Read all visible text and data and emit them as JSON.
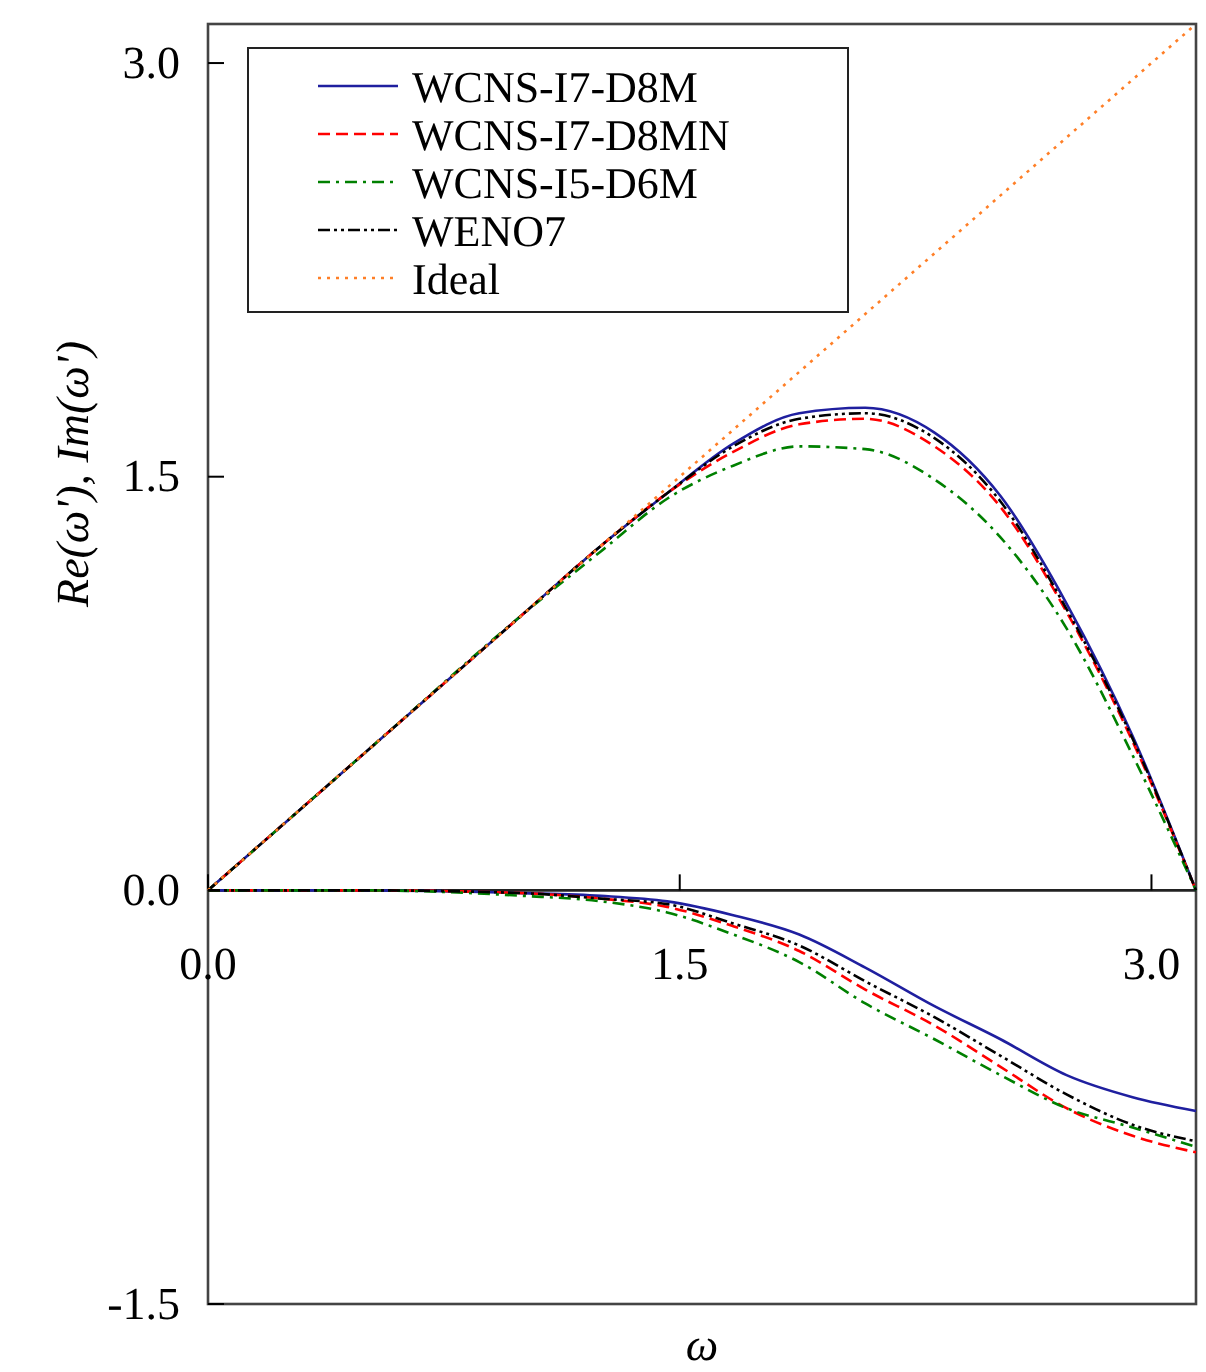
{
  "chart_data": {
    "type": "line",
    "xlabel": "ω",
    "ylabel": "Re(ω'), Im(ω')",
    "x": [
      0,
      0.5,
      1.0,
      1.25,
      1.46,
      1.67,
      1.88,
      2.09,
      2.31,
      2.52,
      2.73,
      2.94,
      3.1416
    ],
    "xlim": [
      0,
      3.1416
    ],
    "ylim": [
      -1.5,
      3.1416
    ],
    "xticks": [
      {
        "value": 0,
        "label": "0.0"
      },
      1.5,
      {
        "value": 3,
        "label": "3.0"
      }
    ],
    "yticks": [
      {
        "value": -1.5,
        "label": "-1.5"
      },
      {
        "value": 0,
        "label": "0.0"
      },
      1.5,
      {
        "value": 3,
        "label": "3.0"
      }
    ],
    "legend": "top left",
    "grid": false,
    "series": [
      {
        "name": "WCNS-I7-D8M",
        "color": "#1f1f9f",
        "line_style": "solid",
        "values": [
          0,
          0.5,
          1.0,
          1.25,
          1.44,
          1.62,
          1.73,
          1.75,
          1.66,
          1.43,
          1.04,
          0.56,
          0
        ]
      },
      {
        "name": "WCNS-I7-D8MN",
        "color": "#ff0000",
        "line_style": "dashed",
        "values": [
          0,
          0.5,
          1.0,
          1.25,
          1.44,
          1.59,
          1.69,
          1.71,
          1.61,
          1.39,
          1.01,
          0.54,
          0
        ]
      },
      {
        "name": "WCNS-I5-D6M",
        "color": "#008000",
        "line_style": "dashdot",
        "values": [
          0,
          0.5,
          1.0,
          1.23,
          1.42,
          1.54,
          1.61,
          1.6,
          1.49,
          1.28,
          0.95,
          0.49,
          0
        ]
      },
      {
        "name": "WENO7",
        "color": "#000000",
        "line_style": "dashdotdot",
        "values": [
          0,
          0.5,
          1.0,
          1.25,
          1.44,
          1.61,
          1.71,
          1.73,
          1.64,
          1.41,
          1.02,
          0.55,
          0
        ]
      },
      {
        "name": "Ideal",
        "color": "#ff7f27",
        "line_style": "dotted",
        "x": [
          0,
          3.1416
        ],
        "values": [
          0,
          3.1416
        ]
      },
      {
        "color": "#1f1f9f",
        "line_style": "solid",
        "values": [
          0,
          0,
          -0.01,
          -0.02,
          -0.04,
          -0.09,
          -0.16,
          -0.28,
          -0.42,
          -0.54,
          -0.67,
          -0.75,
          -0.8
        ]
      },
      {
        "color": "#ff0000",
        "line_style": "dashed",
        "values": [
          0,
          0,
          -0.01,
          -0.03,
          -0.06,
          -0.13,
          -0.22,
          -0.36,
          -0.49,
          -0.64,
          -0.79,
          -0.89,
          -0.95
        ]
      },
      {
        "color": "#008000",
        "line_style": "dashdot",
        "values": [
          0,
          0,
          -0.02,
          -0.04,
          -0.08,
          -0.16,
          -0.26,
          -0.41,
          -0.54,
          -0.67,
          -0.79,
          -0.86,
          -0.93
        ]
      },
      {
        "color": "#000000",
        "line_style": "dashdotdot",
        "values": [
          0,
          0,
          -0.01,
          -0.03,
          -0.05,
          -0.12,
          -0.2,
          -0.33,
          -0.46,
          -0.6,
          -0.74,
          -0.85,
          -0.91
        ]
      }
    ]
  }
}
